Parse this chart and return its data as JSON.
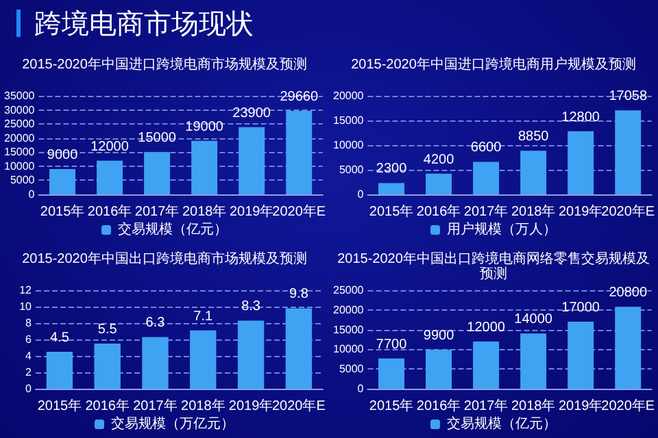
{
  "chart_data": [
    {
      "type": "bar",
      "title": "2015-2020年中国进口跨境电商市场规模及预测",
      "annotations": [
        "跨境电商市场现状"
      ],
      "categories": [
        "2015年",
        "2016年",
        "2017年",
        "2018年",
        "2019年",
        "2020年E"
      ],
      "series": [
        {
          "name": "交易规模（亿元）",
          "color": "#3fa2f2",
          "values": [
            9000,
            12000,
            15000,
            19000,
            23900,
            29660
          ]
        }
      ],
      "ylim": [
        0,
        35000
      ],
      "yticks": [
        0,
        5000,
        10000,
        15000,
        20000,
        25000,
        30000,
        35000
      ],
      "grid": "y",
      "legend": "bottom",
      "data_labels": true
    },
    {
      "type": "bar",
      "title": "2015-2020年中国进口跨境电商用户规模及预测",
      "categories": [
        "2015年",
        "2016年",
        "2017年",
        "2018年",
        "2019年",
        "2020年E"
      ],
      "series": [
        {
          "name": "用户规模（万人）",
          "color": "#3fa2f2",
          "values": [
            2300,
            4200,
            6600,
            8850,
            12800,
            17058
          ]
        }
      ],
      "ylim": [
        0,
        20000
      ],
      "yticks": [
        0,
        5000,
        10000,
        15000,
        20000
      ],
      "grid": "y",
      "legend": "bottom",
      "data_labels": true
    },
    {
      "type": "bar",
      "title": "2015-2020年中国出口跨境电商市场规模及预测",
      "categories": [
        "2015年",
        "2016年",
        "2017年",
        "2018年",
        "2019年",
        "2020年E"
      ],
      "series": [
        {
          "name": "交易规模（万亿元）",
          "color": "#3fa2f2",
          "values": [
            4.5,
            5.5,
            6.3,
            7.1,
            8.3,
            9.8
          ]
        }
      ],
      "ylim": [
        0,
        12
      ],
      "yticks": [
        0,
        2,
        4,
        6,
        8,
        10,
        12
      ],
      "grid": "y",
      "legend": "bottom",
      "data_labels": true
    },
    {
      "type": "bar",
      "title": "2015-2020年中国出口跨境电商网络零售交易规模及预测",
      "categories": [
        "2015年",
        "2016年",
        "2017年",
        "2018年",
        "2019年",
        "2020年E"
      ],
      "series": [
        {
          "name": "交易规模（亿元）",
          "color": "#3fa2f2",
          "values": [
            7700,
            9900,
            12000,
            14000,
            17000,
            20800
          ]
        }
      ],
      "ylim": [
        0,
        25000
      ],
      "yticks": [
        0,
        5000,
        10000,
        15000,
        20000,
        25000
      ],
      "grid": "y",
      "legend": "bottom",
      "data_labels": true
    }
  ]
}
